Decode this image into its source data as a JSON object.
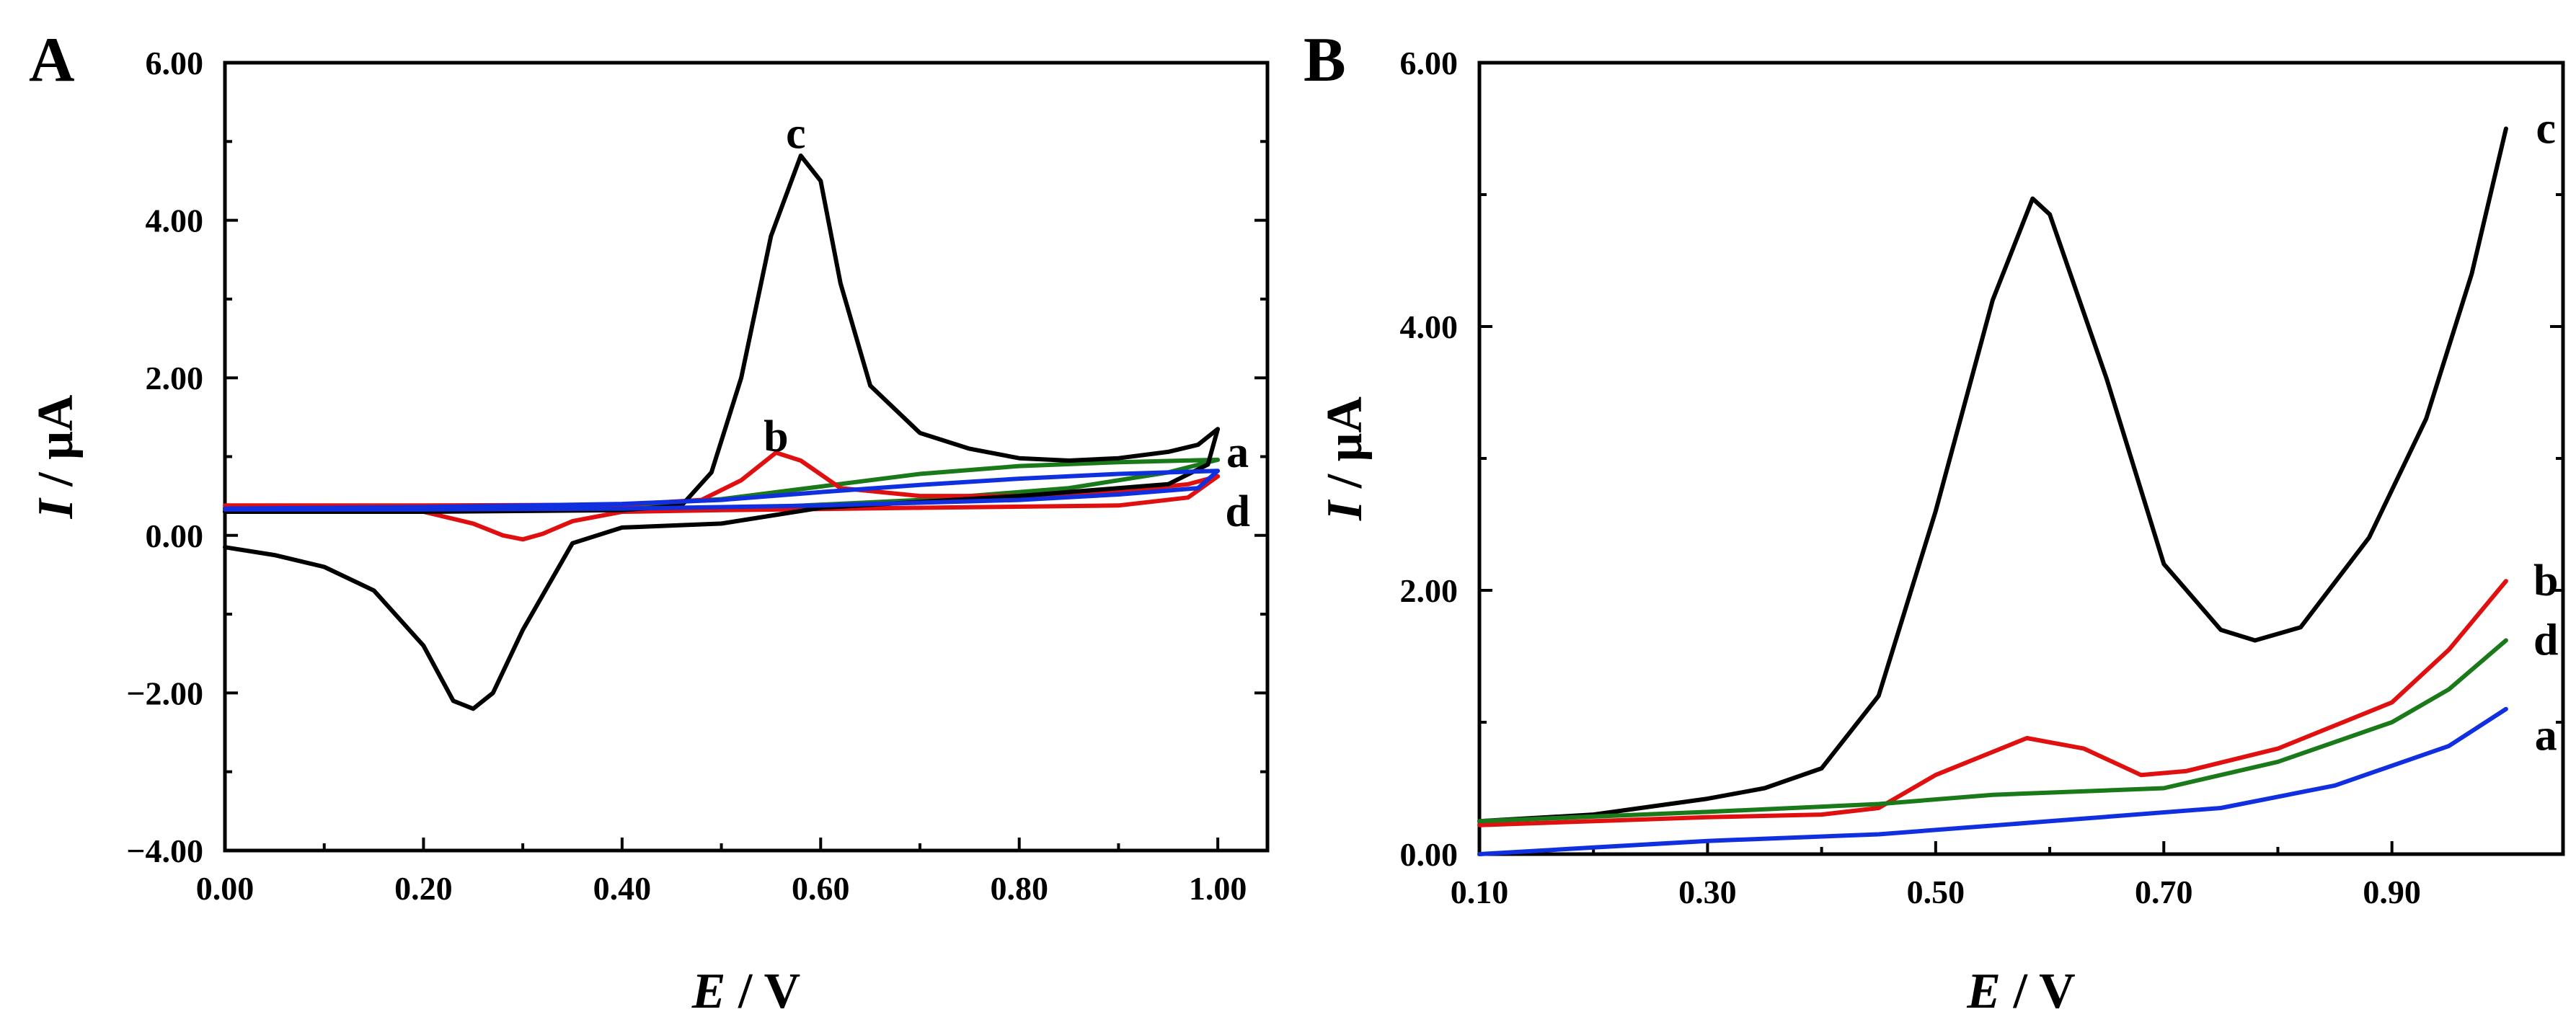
{
  "chart_data": [
    {
      "panel": "A",
      "type": "line",
      "xlabel_var": "E",
      "xlabel_unit": " / V",
      "ylabel_var": "I",
      "ylabel_unit": " / μA",
      "xlim": [
        0.0,
        1.05
      ],
      "ylim": [
        -4.0,
        6.0
      ],
      "xticks": [
        0.0,
        0.2,
        0.4,
        0.6,
        0.8,
        1.0
      ],
      "xtick_labels": [
        "0.00",
        "0.20",
        "0.40",
        "0.60",
        "0.80",
        "1.00"
      ],
      "yticks": [
        -4.0,
        -2.0,
        0.0,
        2.0,
        4.0,
        6.0
      ],
      "ytick_labels": [
        "−4.00",
        "−2.00",
        "0.00",
        "2.00",
        "4.00",
        "6.00"
      ],
      "series": [
        {
          "name": "a",
          "color": "#1a7a1a",
          "points": [
            [
              0.0,
              0.32
            ],
            [
              0.2,
              0.34
            ],
            [
              0.4,
              0.38
            ],
            [
              0.5,
              0.46
            ],
            [
              0.6,
              0.62
            ],
            [
              0.7,
              0.78
            ],
            [
              0.8,
              0.88
            ],
            [
              0.9,
              0.93
            ],
            [
              1.0,
              0.96
            ],
            [
              0.95,
              0.8
            ],
            [
              0.85,
              0.6
            ],
            [
              0.7,
              0.45
            ],
            [
              0.55,
              0.36
            ],
            [
              0.4,
              0.33
            ],
            [
              0.2,
              0.3
            ],
            [
              0.0,
              0.3
            ]
          ]
        },
        {
          "name": "b",
          "color": "#e01010",
          "points": [
            [
              0.0,
              0.38
            ],
            [
              0.2,
              0.38
            ],
            [
              0.4,
              0.39
            ],
            [
              0.48,
              0.45
            ],
            [
              0.52,
              0.7
            ],
            [
              0.555,
              1.05
            ],
            [
              0.58,
              0.95
            ],
            [
              0.62,
              0.6
            ],
            [
              0.7,
              0.5
            ],
            [
              0.8,
              0.5
            ],
            [
              0.9,
              0.56
            ],
            [
              0.97,
              0.65
            ],
            [
              1.0,
              0.75
            ],
            [
              0.97,
              0.48
            ],
            [
              0.9,
              0.38
            ],
            [
              0.7,
              0.35
            ],
            [
              0.5,
              0.32
            ],
            [
              0.4,
              0.3
            ],
            [
              0.35,
              0.18
            ],
            [
              0.32,
              0.02
            ],
            [
              0.3,
              -0.05
            ],
            [
              0.28,
              0.0
            ],
            [
              0.25,
              0.15
            ],
            [
              0.2,
              0.3
            ],
            [
              0.1,
              0.33
            ],
            [
              0.0,
              0.35
            ]
          ]
        },
        {
          "name": "c",
          "color": "#000000",
          "points": [
            [
              0.0,
              0.3
            ],
            [
              0.2,
              0.3
            ],
            [
              0.4,
              0.32
            ],
            [
              0.46,
              0.38
            ],
            [
              0.49,
              0.8
            ],
            [
              0.52,
              2.0
            ],
            [
              0.55,
              3.8
            ],
            [
              0.58,
              4.82
            ],
            [
              0.6,
              4.5
            ],
            [
              0.62,
              3.2
            ],
            [
              0.65,
              1.9
            ],
            [
              0.7,
              1.3
            ],
            [
              0.75,
              1.1
            ],
            [
              0.8,
              0.98
            ],
            [
              0.85,
              0.95
            ],
            [
              0.9,
              0.98
            ],
            [
              0.95,
              1.06
            ],
            [
              0.98,
              1.15
            ],
            [
              1.0,
              1.35
            ],
            [
              0.99,
              0.9
            ],
            [
              0.95,
              0.65
            ],
            [
              0.8,
              0.5
            ],
            [
              0.6,
              0.35
            ],
            [
              0.5,
              0.15
            ],
            [
              0.4,
              0.1
            ],
            [
              0.35,
              -0.1
            ],
            [
              0.3,
              -1.2
            ],
            [
              0.27,
              -2.0
            ],
            [
              0.25,
              -2.2
            ],
            [
              0.23,
              -2.1
            ],
            [
              0.2,
              -1.4
            ],
            [
              0.15,
              -0.7
            ],
            [
              0.1,
              -0.4
            ],
            [
              0.05,
              -0.25
            ],
            [
              0.0,
              -0.15
            ]
          ]
        },
        {
          "name": "d",
          "color": "#1030e0",
          "points": [
            [
              0.0,
              0.34
            ],
            [
              0.2,
              0.36
            ],
            [
              0.4,
              0.4
            ],
            [
              0.5,
              0.45
            ],
            [
              0.6,
              0.55
            ],
            [
              0.7,
              0.64
            ],
            [
              0.8,
              0.72
            ],
            [
              0.9,
              0.78
            ],
            [
              1.0,
              0.82
            ],
            [
              0.98,
              0.6
            ],
            [
              0.9,
              0.52
            ],
            [
              0.8,
              0.45
            ],
            [
              0.6,
              0.38
            ],
            [
              0.4,
              0.34
            ],
            [
              0.2,
              0.33
            ],
            [
              0.0,
              0.33
            ]
          ]
        }
      ],
      "labels": [
        {
          "text": "c",
          "x": 0.575,
          "y": 5.1
        },
        {
          "text": "b",
          "x": 0.555,
          "y": 1.25
        },
        {
          "text": "a",
          "x": 1.02,
          "y": 1.05
        },
        {
          "text": "d",
          "x": 1.02,
          "y": 0.3
        }
      ]
    },
    {
      "panel": "B",
      "type": "line",
      "xlabel_var": "E",
      "xlabel_unit": " / V",
      "ylabel_var": "I",
      "ylabel_unit": " / μA",
      "xlim": [
        0.1,
        1.05
      ],
      "ylim": [
        0.0,
        6.0
      ],
      "xticks": [
        0.1,
        0.3,
        0.5,
        0.7,
        0.9
      ],
      "xtick_labels": [
        "0.10",
        "0.30",
        "0.50",
        "0.70",
        "0.90"
      ],
      "yticks": [
        0.0,
        2.0,
        4.0,
        6.0
      ],
      "ytick_labels": [
        "0.00",
        "2.00",
        "4.00",
        "6.00"
      ],
      "series": [
        {
          "name": "c",
          "color": "#000000",
          "points": [
            [
              0.1,
              0.25
            ],
            [
              0.2,
              0.3
            ],
            [
              0.3,
              0.42
            ],
            [
              0.35,
              0.5
            ],
            [
              0.4,
              0.65
            ],
            [
              0.45,
              1.2
            ],
            [
              0.5,
              2.6
            ],
            [
              0.55,
              4.2
            ],
            [
              0.585,
              4.97
            ],
            [
              0.6,
              4.85
            ],
            [
              0.65,
              3.6
            ],
            [
              0.7,
              2.2
            ],
            [
              0.75,
              1.7
            ],
            [
              0.78,
              1.62
            ],
            [
              0.82,
              1.72
            ],
            [
              0.88,
              2.4
            ],
            [
              0.93,
              3.3
            ],
            [
              0.97,
              4.4
            ],
            [
              1.0,
              5.5
            ]
          ]
        },
        {
          "name": "b",
          "color": "#e01010",
          "points": [
            [
              0.1,
              0.22
            ],
            [
              0.3,
              0.28
            ],
            [
              0.4,
              0.3
            ],
            [
              0.45,
              0.35
            ],
            [
              0.5,
              0.6
            ],
            [
              0.58,
              0.88
            ],
            [
              0.63,
              0.8
            ],
            [
              0.68,
              0.6
            ],
            [
              0.72,
              0.63
            ],
            [
              0.8,
              0.8
            ],
            [
              0.9,
              1.15
            ],
            [
              0.95,
              1.55
            ],
            [
              1.0,
              2.07
            ]
          ]
        },
        {
          "name": "d",
          "color": "#1a7a1a",
          "points": [
            [
              0.1,
              0.25
            ],
            [
              0.3,
              0.32
            ],
            [
              0.45,
              0.38
            ],
            [
              0.55,
              0.45
            ],
            [
              0.7,
              0.5
            ],
            [
              0.8,
              0.7
            ],
            [
              0.9,
              1.0
            ],
            [
              0.95,
              1.25
            ],
            [
              1.0,
              1.62
            ]
          ]
        },
        {
          "name": "a",
          "color": "#1030e0",
          "points": [
            [
              0.1,
              0.0
            ],
            [
              0.2,
              0.05
            ],
            [
              0.3,
              0.1
            ],
            [
              0.45,
              0.15
            ],
            [
              0.6,
              0.25
            ],
            [
              0.75,
              0.35
            ],
            [
              0.85,
              0.52
            ],
            [
              0.95,
              0.82
            ],
            [
              1.0,
              1.1
            ]
          ]
        }
      ],
      "labels": [
        {
          "text": "c",
          "x": 1.035,
          "y": 5.5
        },
        {
          "text": "b",
          "x": 1.035,
          "y": 2.07
        },
        {
          "text": "d",
          "x": 1.035,
          "y": 1.62
        },
        {
          "text": "a",
          "x": 1.035,
          "y": 0.9
        }
      ]
    }
  ]
}
